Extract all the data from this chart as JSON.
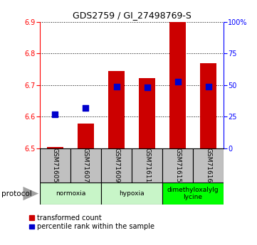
{
  "title": "GDS2759 / GI_27498769-S",
  "samples": [
    "GSM71605",
    "GSM71607",
    "GSM71609",
    "GSM71611",
    "GSM71615",
    "GSM71616"
  ],
  "transformed_counts": [
    6.505,
    6.578,
    6.745,
    6.722,
    6.9,
    6.77
  ],
  "percentile_ranks": [
    27,
    32,
    49,
    48,
    53,
    49
  ],
  "bar_baseline": 6.5,
  "ylim": [
    6.5,
    6.9
  ],
  "yticks_left": [
    6.5,
    6.6,
    6.7,
    6.8,
    6.9
  ],
  "yticks_right": [
    0,
    25,
    50,
    75,
    100
  ],
  "bar_color": "#CC0000",
  "dot_color": "#0000CC",
  "legend_red": "transformed count",
  "legend_blue": "percentile rank within the sample",
  "bar_width": 0.55,
  "dot_size": 30,
  "sample_box_color": "#C0C0C0",
  "normoxia_color": "#C8F5C8",
  "hypoxia_color": "#C8F5C8",
  "dmog_color": "#00FF00",
  "protocol_arrow_color": "#A0A0A0"
}
